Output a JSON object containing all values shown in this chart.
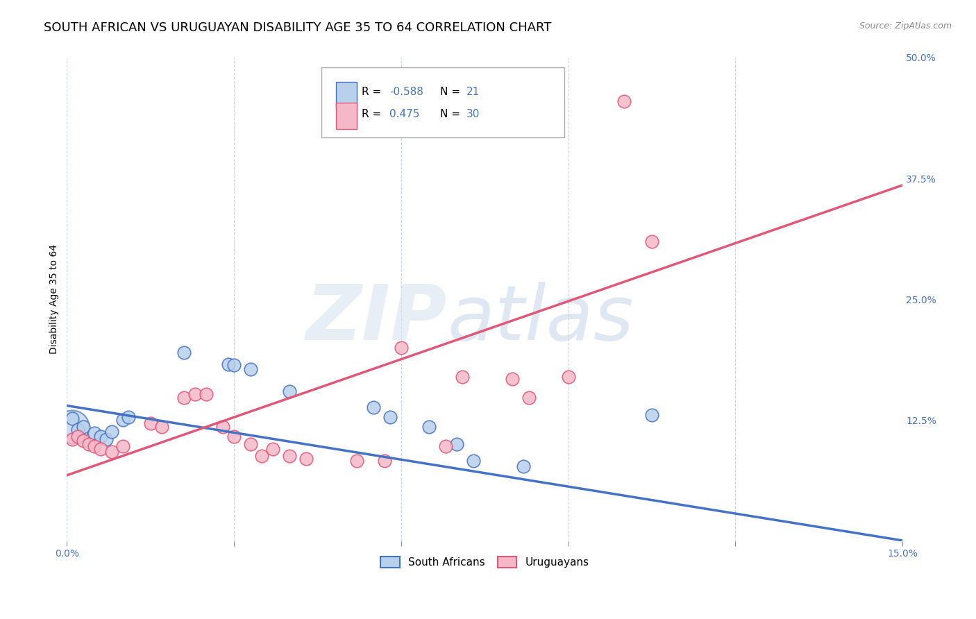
{
  "title": "SOUTH AFRICAN VS URUGUAYAN DISABILITY AGE 35 TO 64 CORRELATION CHART",
  "source": "Source: ZipAtlas.com",
  "ylabel": "Disability Age 35 to 64",
  "xlim": [
    0.0,
    0.15
  ],
  "ylim": [
    0.0,
    0.5
  ],
  "yticks_right": [
    0.0,
    0.125,
    0.25,
    0.375,
    0.5
  ],
  "ytick_labels_right": [
    "",
    "12.5%",
    "25.0%",
    "37.5%",
    "50.0%"
  ],
  "r_blue": -0.588,
  "n_blue": 21,
  "r_pink": 0.475,
  "n_pink": 30,
  "blue_face_color": "#b8d0ea",
  "blue_edge_color": "#4472c4",
  "pink_face_color": "#f4b8c8",
  "pink_edge_color": "#e05878",
  "blue_line_color": "#4472c4",
  "pink_line_color": "#e05878",
  "grid_color": "#c8d4e8",
  "background_color": "#ffffff",
  "title_fontsize": 13,
  "tick_fontsize": 10,
  "legend_fontsize": 11,
  "blue_intercept": 0.14,
  "blue_slope": -0.93,
  "pink_intercept": 0.068,
  "pink_slope": 2.0,
  "blue_points": [
    [
      0.001,
      0.127
    ],
    [
      0.002,
      0.115
    ],
    [
      0.003,
      0.118
    ],
    [
      0.005,
      0.112
    ],
    [
      0.006,
      0.108
    ],
    [
      0.007,
      0.105
    ],
    [
      0.008,
      0.113
    ],
    [
      0.01,
      0.125
    ],
    [
      0.011,
      0.128
    ],
    [
      0.021,
      0.195
    ],
    [
      0.029,
      0.183
    ],
    [
      0.03,
      0.182
    ],
    [
      0.033,
      0.178
    ],
    [
      0.04,
      0.155
    ],
    [
      0.055,
      0.138
    ],
    [
      0.058,
      0.128
    ],
    [
      0.065,
      0.118
    ],
    [
      0.07,
      0.1
    ],
    [
      0.073,
      0.083
    ],
    [
      0.082,
      0.077
    ],
    [
      0.105,
      0.13
    ]
  ],
  "pink_points": [
    [
      0.001,
      0.105
    ],
    [
      0.002,
      0.108
    ],
    [
      0.003,
      0.104
    ],
    [
      0.004,
      0.1
    ],
    [
      0.005,
      0.098
    ],
    [
      0.006,
      0.095
    ],
    [
      0.008,
      0.092
    ],
    [
      0.01,
      0.098
    ],
    [
      0.015,
      0.122
    ],
    [
      0.017,
      0.118
    ],
    [
      0.021,
      0.148
    ],
    [
      0.023,
      0.152
    ],
    [
      0.025,
      0.152
    ],
    [
      0.028,
      0.118
    ],
    [
      0.03,
      0.108
    ],
    [
      0.033,
      0.1
    ],
    [
      0.035,
      0.088
    ],
    [
      0.037,
      0.095
    ],
    [
      0.04,
      0.088
    ],
    [
      0.043,
      0.085
    ],
    [
      0.052,
      0.083
    ],
    [
      0.057,
      0.083
    ],
    [
      0.06,
      0.2
    ],
    [
      0.068,
      0.098
    ],
    [
      0.071,
      0.17
    ],
    [
      0.08,
      0.168
    ],
    [
      0.083,
      0.148
    ],
    [
      0.09,
      0.17
    ],
    [
      0.1,
      0.455
    ],
    [
      0.105,
      0.31
    ]
  ]
}
